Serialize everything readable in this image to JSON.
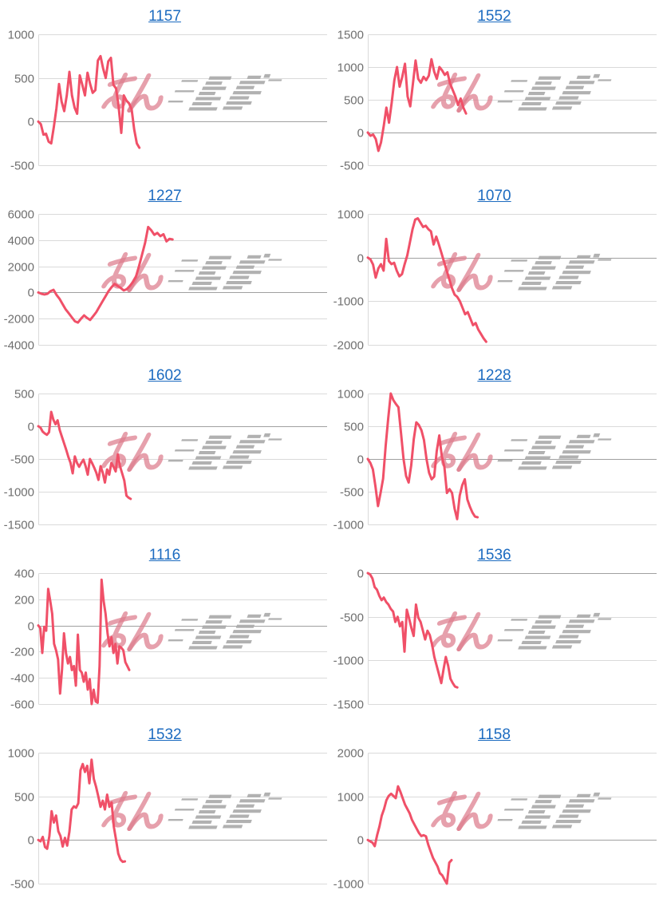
{
  "page": {
    "background": "#ffffff"
  },
  "style": {
    "accent_link_color": "#1c6bc0",
    "line_color": "#f05068",
    "axis_label_color": "#6f6f6f",
    "grid_color": "#dadada",
    "zero_line_color": "#a0a0a0",
    "watermark_pink": "#dd7b8c",
    "watermark_gray": "#aaaaaa"
  },
  "watermark": {
    "icon": "minrepo-logo-watermark",
    "text": "みんレポ"
  },
  "chart_data": [
    {
      "type": "line",
      "title": "1157",
      "ylim": [
        -500,
        1000
      ],
      "yticks": [
        1000,
        500,
        0,
        -500
      ],
      "grid": true,
      "legend": "none",
      "x_end_fraction": 0.35,
      "values": [
        0,
        -30,
        -150,
        -140,
        -230,
        -250,
        -60,
        150,
        430,
        230,
        120,
        300,
        570,
        300,
        160,
        90,
        530,
        420,
        300,
        560,
        430,
        330,
        360,
        700,
        750,
        610,
        500,
        690,
        730,
        420,
        380,
        170,
        -130,
        300,
        240,
        210,
        140,
        -90,
        -250,
        -300
      ]
    },
    {
      "type": "line",
      "title": "1552",
      "ylim": [
        -500,
        1500
      ],
      "yticks": [
        1500,
        1000,
        500,
        0,
        -500
      ],
      "grid": true,
      "legend": "none",
      "x_end_fraction": 0.34,
      "values": [
        0,
        -50,
        -30,
        -100,
        -280,
        -150,
        100,
        380,
        150,
        450,
        800,
        1000,
        700,
        850,
        1050,
        550,
        400,
        750,
        1100,
        820,
        760,
        850,
        800,
        870,
        1120,
        930,
        820,
        1000,
        950,
        880,
        920,
        750,
        650,
        550,
        420,
        520,
        380,
        290
      ]
    },
    {
      "type": "line",
      "title": "1227",
      "ylim": [
        -4000,
        6000
      ],
      "yticks": [
        6000,
        4000,
        2000,
        0,
        -2000,
        -4000
      ],
      "grid": true,
      "legend": "none",
      "x_end_fraction": 0.465,
      "values": [
        0,
        -100,
        -150,
        -100,
        100,
        200,
        -200,
        -500,
        -900,
        -1300,
        -1600,
        -1900,
        -2200,
        -2300,
        -2000,
        -1750,
        -1950,
        -2100,
        -1800,
        -1500,
        -1100,
        -700,
        -300,
        100,
        400,
        650,
        500,
        350,
        150,
        250,
        500,
        800,
        1200,
        2000,
        2900,
        3800,
        5000,
        4750,
        4400,
        4550,
        4300,
        4450,
        3900,
        4100,
        4050
      ]
    },
    {
      "type": "line",
      "title": "1070",
      "ylim": [
        -2000,
        1000
      ],
      "yticks": [
        1000,
        0,
        -1000,
        -2000
      ],
      "grid": true,
      "legend": "none",
      "x_end_fraction": 0.41,
      "values": [
        0,
        -40,
        -160,
        -460,
        -250,
        -150,
        -300,
        430,
        -80,
        -150,
        -120,
        -300,
        -430,
        -380,
        -150,
        50,
        350,
        650,
        870,
        900,
        800,
        700,
        730,
        650,
        600,
        300,
        480,
        300,
        100,
        -100,
        -300,
        -500,
        -700,
        -850,
        -900,
        -1000,
        -1150,
        -1300,
        -1250,
        -1400,
        -1550,
        -1500,
        -1650,
        -1750,
        -1850,
        -1930
      ]
    },
    {
      "type": "line",
      "title": "1602",
      "ylim": [
        -1500,
        500
      ],
      "yticks": [
        500,
        0,
        -500,
        -1000,
        -1500
      ],
      "grid": true,
      "legend": "none",
      "x_end_fraction": 0.32,
      "values": [
        0,
        -20,
        -80,
        -110,
        -130,
        -90,
        220,
        100,
        30,
        90,
        -60,
        -160,
        -260,
        -360,
        -470,
        -560,
        -720,
        -460,
        -560,
        -620,
        -560,
        -510,
        -610,
        -740,
        -500,
        -560,
        -630,
        -710,
        -820,
        -610,
        -710,
        -860,
        -660,
        -740,
        -560,
        -620,
        -690,
        -430,
        -610,
        -720,
        -830,
        -1060,
        -1090,
        -1110
      ]
    },
    {
      "type": "line",
      "title": "1228",
      "ylim": [
        -1000,
        1000
      ],
      "yticks": [
        1000,
        500,
        0,
        -500,
        -1000
      ],
      "grid": true,
      "legend": "none",
      "x_end_fraction": 0.38,
      "values": [
        0,
        -60,
        -160,
        -420,
        -720,
        -520,
        -300,
        200,
        620,
        1000,
        900,
        840,
        790,
        400,
        0,
        -260,
        -360,
        -100,
        300,
        560,
        520,
        440,
        290,
        0,
        -210,
        -310,
        -270,
        120,
        360,
        40,
        -120,
        -520,
        -460,
        -520,
        -760,
        -920,
        -560,
        -400,
        -310,
        -620,
        -730,
        -820,
        -880,
        -890
      ]
    },
    {
      "type": "line",
      "title": "1116",
      "ylim": [
        -600,
        400
      ],
      "yticks": [
        400,
        200,
        0,
        -200,
        -400,
        -600
      ],
      "grid": true,
      "legend": "none",
      "x_end_fraction": 0.315,
      "values": [
        0,
        -20,
        -210,
        -10,
        -40,
        280,
        190,
        90,
        -140,
        -190,
        -260,
        -520,
        -340,
        -60,
        -210,
        -290,
        -240,
        -340,
        -310,
        -460,
        -70,
        -340,
        -360,
        -430,
        -360,
        -490,
        -410,
        -600,
        -490,
        -580,
        -590,
        -310,
        350,
        190,
        90,
        -60,
        -160,
        -90,
        -210,
        -140,
        -290,
        -160,
        -170,
        -190,
        -280,
        -310,
        -340
      ]
    },
    {
      "type": "line",
      "title": "1536",
      "ylim": [
        -1500,
        0
      ],
      "yticks": [
        0,
        -500,
        -1000,
        -1500
      ],
      "grid": true,
      "legend": "none",
      "x_end_fraction": 0.31,
      "values": [
        0,
        -15,
        -60,
        -160,
        -190,
        -260,
        -310,
        -280,
        -330,
        -360,
        -410,
        -440,
        -560,
        -500,
        -610,
        -560,
        -900,
        -420,
        -520,
        -630,
        -720,
        -360,
        -510,
        -560,
        -660,
        -760,
        -660,
        -710,
        -820,
        -960,
        -1060,
        -1160,
        -1260,
        -1100,
        -960,
        -1060,
        -1210,
        -1260,
        -1300,
        -1310
      ]
    },
    {
      "type": "line",
      "title": "1532",
      "ylim": [
        -500,
        1000
      ],
      "yticks": [
        1000,
        500,
        0,
        -500
      ],
      "grid": true,
      "legend": "none",
      "x_end_fraction": 0.3,
      "values": [
        0,
        -15,
        35,
        -80,
        -100,
        45,
        330,
        200,
        280,
        100,
        45,
        -75,
        25,
        -65,
        95,
        350,
        385,
        370,
        420,
        800,
        870,
        780,
        850,
        650,
        920,
        700,
        610,
        500,
        380,
        450,
        350,
        520,
        380,
        430,
        150,
        0,
        -155,
        -225,
        -250,
        -245
      ]
    },
    {
      "type": "line",
      "title": "1158",
      "ylim": [
        -1000,
        2000
      ],
      "yticks": [
        2000,
        1000,
        0,
        -1000
      ],
      "grid": true,
      "legend": "none",
      "x_end_fraction": 0.29,
      "values": [
        0,
        -30,
        -60,
        -140,
        110,
        310,
        560,
        710,
        910,
        1010,
        1060,
        1010,
        960,
        1230,
        1110,
        960,
        810,
        710,
        610,
        460,
        360,
        260,
        160,
        90,
        110,
        85,
        -110,
        -260,
        -410,
        -510,
        -610,
        -760,
        -810,
        -910,
        -1000,
        -520,
        -460
      ]
    }
  ]
}
